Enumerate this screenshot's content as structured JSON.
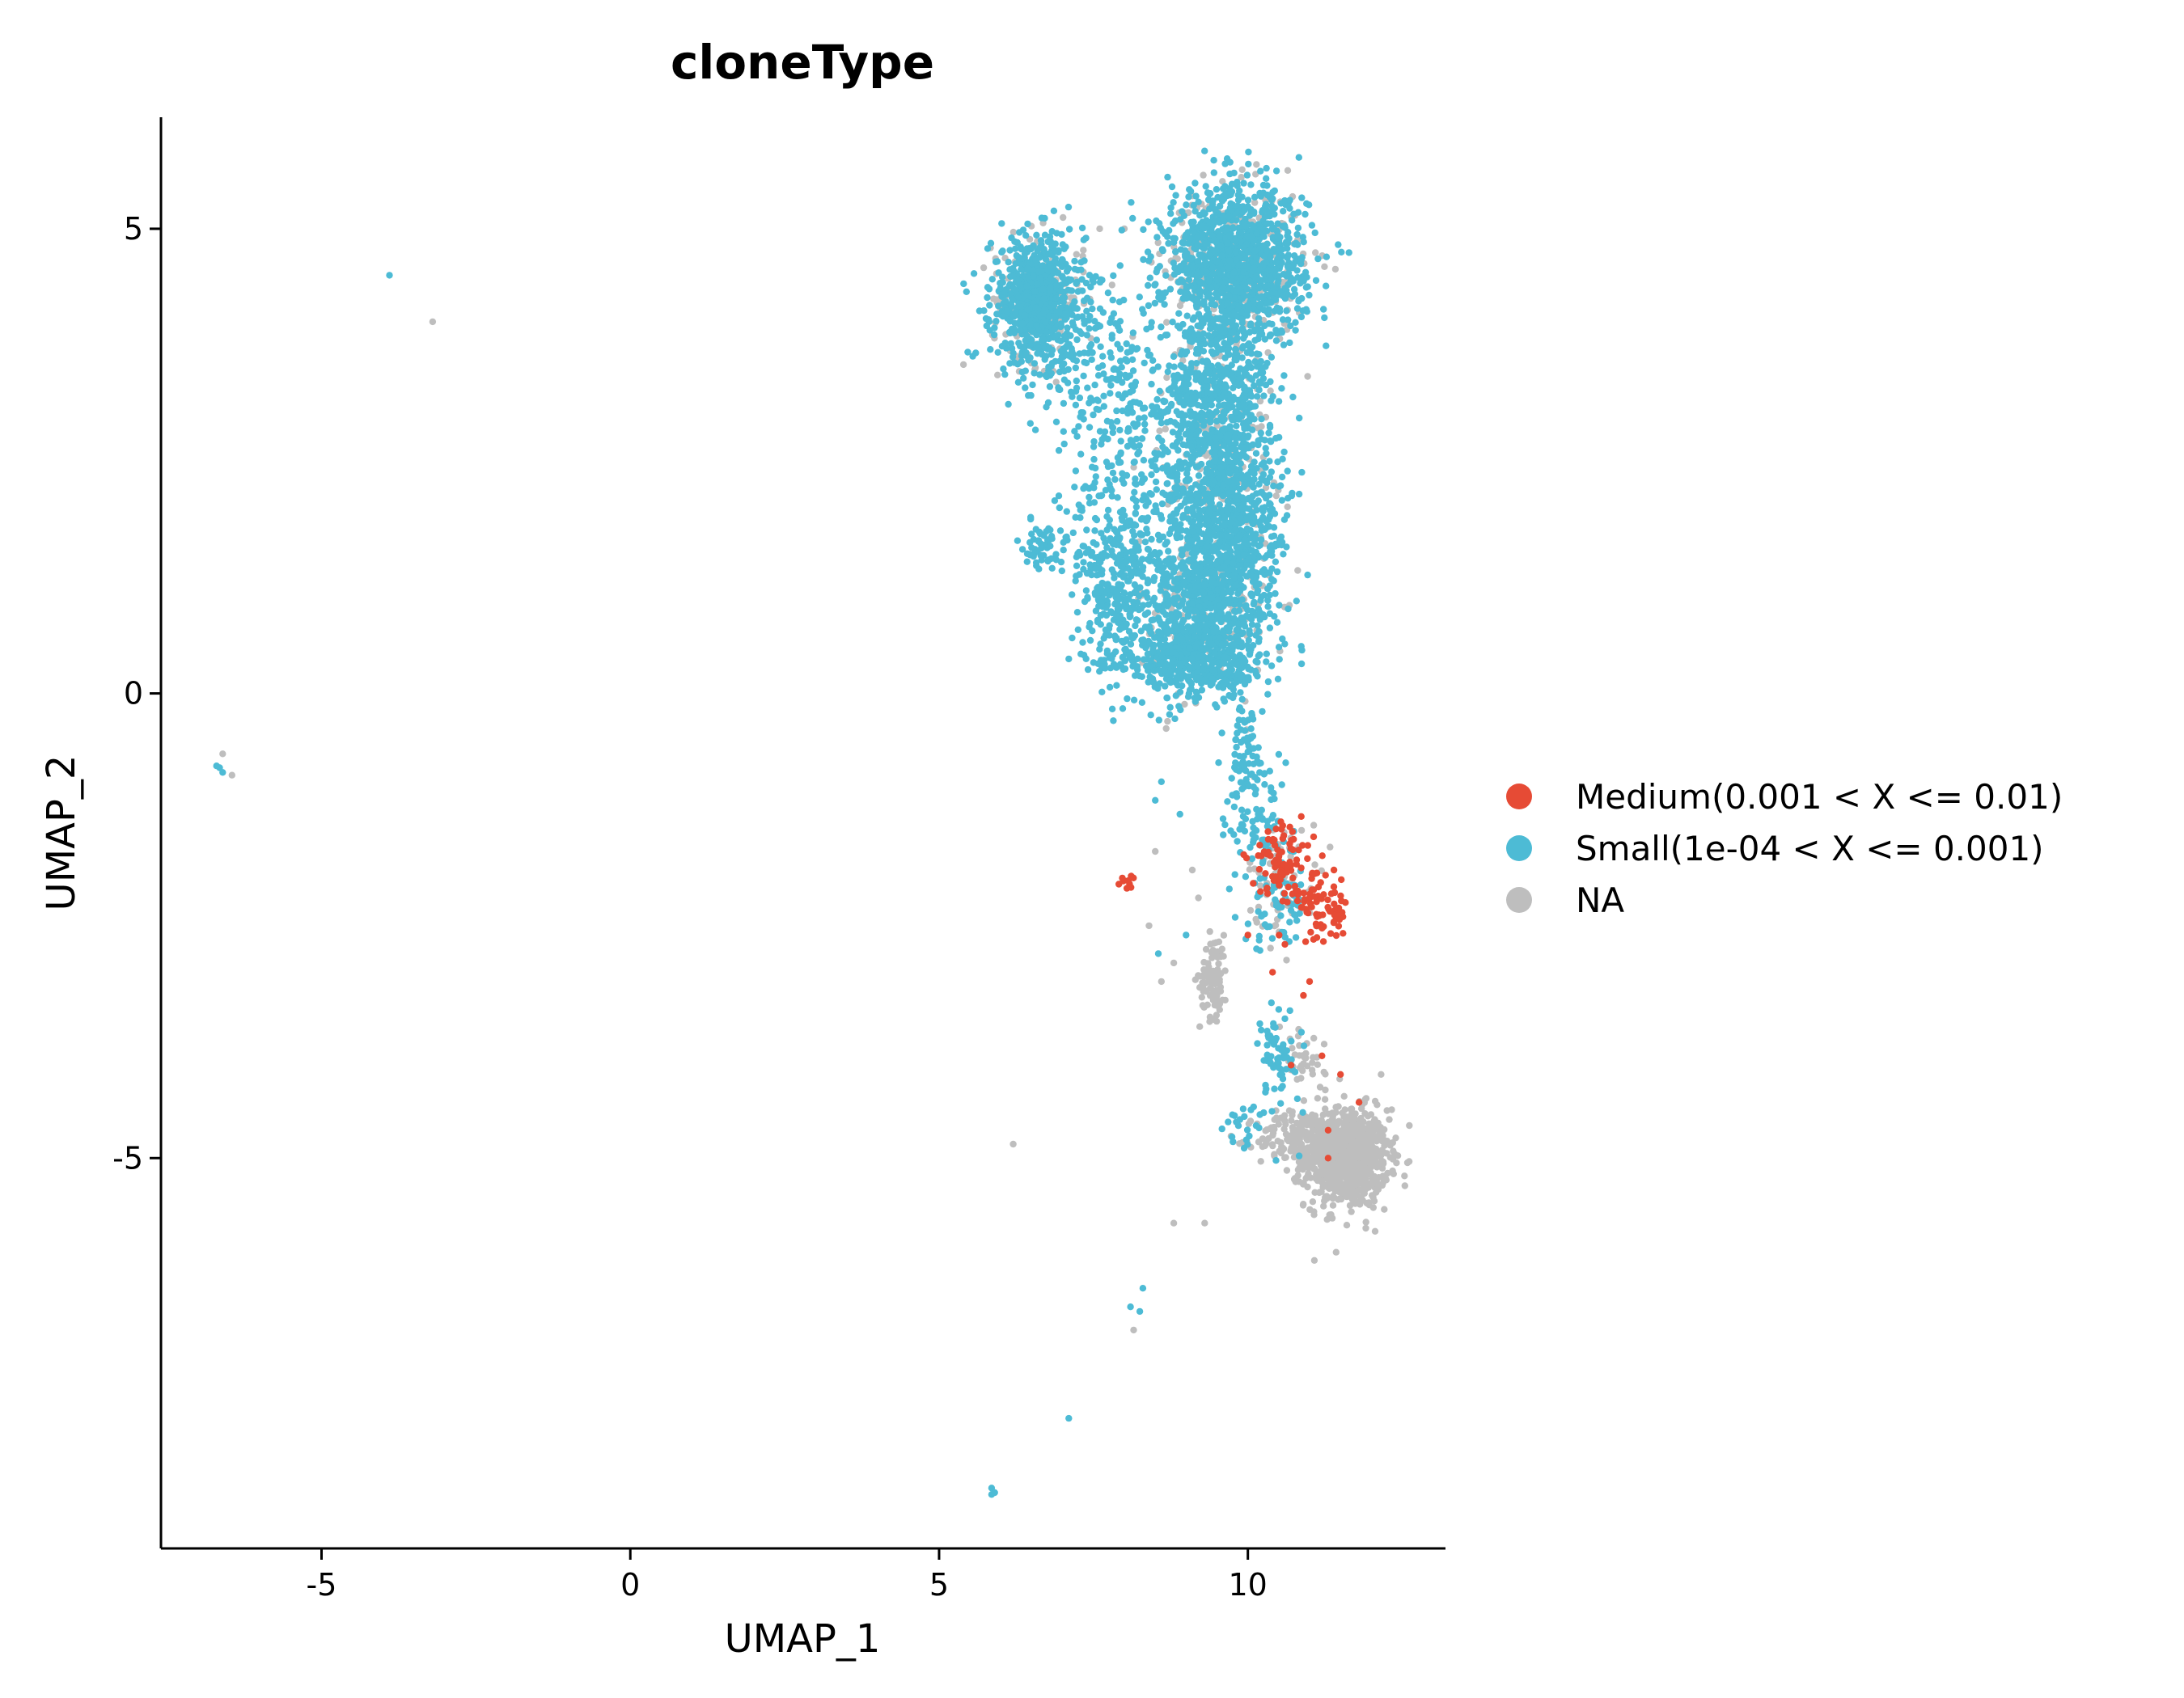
{
  "chart_data": {
    "type": "scatter",
    "title": "cloneType",
    "xlabel": "UMAP_1",
    "ylabel": "UMAP_2",
    "xlim": [
      -7.6,
      13.2
    ],
    "ylim": [
      -9.2,
      6.2
    ],
    "xticks": [
      -5,
      0,
      5,
      10
    ],
    "xtick_labels": [
      "-5",
      "0",
      "5",
      "10"
    ],
    "yticks": [
      5,
      0,
      -5
    ],
    "ytick_labels": [
      "5",
      "0",
      "-5"
    ],
    "grid": false,
    "legend_position": "right",
    "series": [
      {
        "name": "Medium(0.001 < X <= 0.01)",
        "color": "#E64B35",
        "clusters": [
          {
            "center": [
              10.6,
              -1.85
            ],
            "spread": [
              0.4,
              0.3
            ],
            "count": 90
          },
          {
            "center": [
              11.2,
              -2.3
            ],
            "spread": [
              0.3,
              0.25
            ],
            "count": 70
          },
          {
            "center": [
              8.05,
              -2.05
            ],
            "spread": [
              0.1,
              0.06
            ],
            "count": 10
          }
        ],
        "points": [
          [
            10.4,
            -3.0
          ],
          [
            11.0,
            -3.1
          ],
          [
            10.9,
            -3.25
          ],
          [
            11.2,
            -3.9
          ],
          [
            10.7,
            -4.0
          ],
          [
            11.5,
            -4.1
          ],
          [
            11.8,
            -4.4
          ],
          [
            11.3,
            -4.7
          ],
          [
            11.3,
            -5.0
          ],
          [
            10.0,
            -2.6
          ],
          [
            10.6,
            -2.7
          ]
        ]
      },
      {
        "name": "Small(1e-04 < X <= 0.001)",
        "color": "#4DBBD5",
        "clusters": [
          {
            "center": [
              6.6,
              4.25
            ],
            "spread": [
              0.5,
              0.45
            ],
            "count": 700
          },
          {
            "center": [
              9.8,
              4.6
            ],
            "spread": [
              0.75,
              0.55
            ],
            "count": 1200
          },
          {
            "center": [
              9.5,
              3.2
            ],
            "spread": [
              0.6,
              0.6
            ],
            "count": 500
          },
          {
            "center": [
              9.6,
              2.0
            ],
            "spread": [
              0.6,
              0.7
            ],
            "count": 750
          },
          {
            "center": [
              9.3,
              1.0
            ],
            "spread": [
              0.75,
              0.5
            ],
            "count": 650
          },
          {
            "center": [
              9.2,
              0.35
            ],
            "spread": [
              0.7,
              0.3
            ],
            "count": 450
          },
          {
            "center": [
              7.85,
              1.0
            ],
            "spread": [
              0.35,
              0.6
            ],
            "count": 260
          },
          {
            "center": [
              8.1,
              2.1
            ],
            "spread": [
              0.7,
              0.9
            ],
            "count": 260
          },
          {
            "center": [
              7.5,
              3.6
            ],
            "spread": [
              0.8,
              0.6
            ],
            "count": 200
          },
          {
            "center": [
              6.7,
              1.6
            ],
            "spread": [
              0.25,
              0.2
            ],
            "count": 60
          },
          {
            "center": [
              9.95,
              -0.6
            ],
            "spread": [
              0.2,
              0.4
            ],
            "count": 70
          },
          {
            "center": [
              10.2,
              -1.4
            ],
            "spread": [
              0.35,
              0.4
            ],
            "count": 80
          },
          {
            "center": [
              10.5,
              -2.2
            ],
            "spread": [
              0.4,
              0.35
            ],
            "count": 70
          },
          {
            "center": [
              10.5,
              -3.9
            ],
            "spread": [
              0.25,
              0.35
            ],
            "count": 60
          },
          {
            "center": [
              10.1,
              -4.6
            ],
            "spread": [
              0.4,
              0.2
            ],
            "count": 25
          }
        ],
        "points": [
          [
            -3.9,
            4.5
          ],
          [
            -6.65,
            -0.8
          ],
          [
            -6.6,
            -0.85
          ],
          [
            -6.7,
            -0.78
          ],
          [
            8.3,
            -6.4
          ],
          [
            8.1,
            -6.6
          ],
          [
            8.25,
            -6.65
          ],
          [
            7.1,
            -7.8
          ],
          [
            5.85,
            -8.55
          ],
          [
            5.9,
            -8.6
          ],
          [
            5.85,
            -8.62
          ],
          [
            8.6,
            -0.95
          ],
          [
            8.5,
            -1.15
          ],
          [
            8.9,
            -1.3
          ],
          [
            8.55,
            -2.8
          ],
          [
            9.0,
            -2.6
          ],
          [
            10.5,
            -3.4
          ],
          [
            10.6,
            -3.5
          ]
        ]
      },
      {
        "name": "NA",
        "color": "#BEBEBE",
        "clusters": [
          {
            "center": [
              11.6,
              -5.0
            ],
            "spread": [
              0.45,
              0.35
            ],
            "count": 900
          },
          {
            "center": [
              10.9,
              -4.8
            ],
            "spread": [
              0.5,
              0.2
            ],
            "count": 200
          },
          {
            "center": [
              9.45,
              -3.05
            ],
            "spread": [
              0.15,
              0.3
            ],
            "count": 90
          },
          {
            "center": [
              6.6,
              4.25
            ],
            "spread": [
              0.5,
              0.45
            ],
            "count": 180
          },
          {
            "center": [
              9.8,
              4.6
            ],
            "spread": [
              0.75,
              0.55
            ],
            "count": 300
          },
          {
            "center": [
              9.5,
              2.6
            ],
            "spread": [
              0.6,
              0.9
            ],
            "count": 160
          },
          {
            "center": [
              9.3,
              0.8
            ],
            "spread": [
              0.7,
              0.6
            ],
            "count": 150
          },
          {
            "center": [
              10.6,
              -2.0
            ],
            "spread": [
              0.4,
              0.4
            ],
            "count": 60
          },
          {
            "center": [
              10.9,
              -4.0
            ],
            "spread": [
              0.4,
              0.3
            ],
            "count": 40
          }
        ],
        "points": [
          [
            -3.2,
            4.0
          ],
          [
            -6.6,
            -0.65
          ],
          [
            -6.45,
            -0.88
          ],
          [
            6.2,
            -4.85
          ],
          [
            8.8,
            -5.7
          ],
          [
            9.3,
            -5.7
          ],
          [
            8.15,
            -6.85
          ],
          [
            8.5,
            -1.7
          ],
          [
            9.2,
            -2.2
          ],
          [
            9.1,
            -1.9
          ],
          [
            8.4,
            -2.5
          ],
          [
            8.8,
            -2.9
          ],
          [
            8.6,
            -3.1
          ],
          [
            10.1,
            -0.9
          ],
          [
            8.7,
            -0.3
          ],
          [
            7.6,
            5.0
          ],
          [
            8.0,
            5.0
          ]
        ]
      }
    ]
  }
}
